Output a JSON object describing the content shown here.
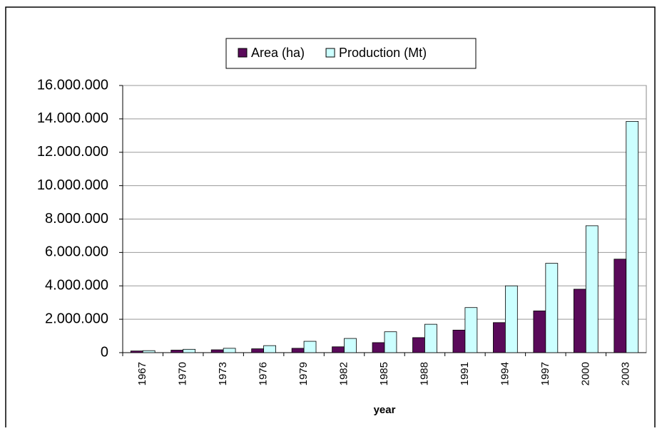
{
  "chart_data": {
    "type": "bar",
    "x_label": "year",
    "categories": [
      "1967",
      "1970",
      "1973",
      "1976",
      "1979",
      "1982",
      "1985",
      "1988",
      "1991",
      "1994",
      "1997",
      "2000",
      "2003"
    ],
    "series": [
      {
        "name": "Area (ha)",
        "color": "#5a0a5a",
        "values": [
          100000,
          150000,
          170000,
          230000,
          260000,
          350000,
          600000,
          900000,
          1350000,
          1800000,
          2500000,
          3800000,
          5600000
        ]
      },
      {
        "name": "Production (Mt)",
        "color": "#ccffff",
        "values": [
          120000,
          200000,
          260000,
          420000,
          680000,
          850000,
          1250000,
          1700000,
          2700000,
          4000000,
          5350000,
          7600000,
          13850000
        ]
      }
    ],
    "ylim": [
      0,
      16000000
    ],
    "yticks": [
      0,
      {
        "value": 2000000,
        "label": "2.000.000"
      },
      {
        "value": 4000000,
        "label": "4.000.000"
      },
      {
        "value": 6000000,
        "label": "6.000.000"
      },
      {
        "value": 8000000,
        "label": "8.000.000"
      },
      {
        "value": 10000000,
        "label": "10.000.000"
      },
      {
        "value": 12000000,
        "label": "12.000.000"
      },
      {
        "value": 14000000,
        "label": "14.000.000"
      },
      {
        "value": 16000000,
        "label": "16.000.000"
      }
    ],
    "grid": true,
    "legend": "top"
  }
}
